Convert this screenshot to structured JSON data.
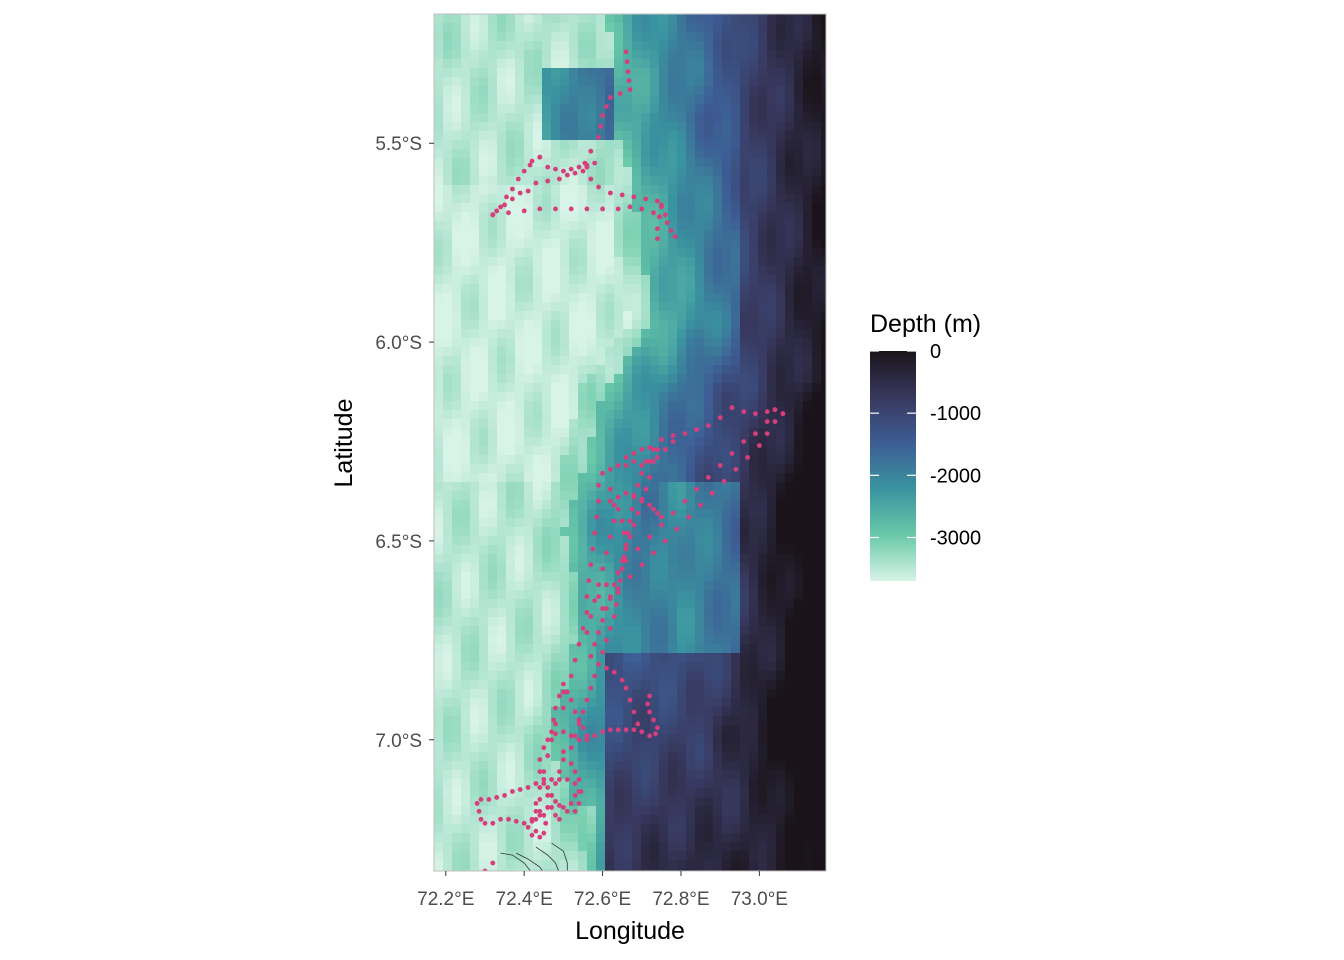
{
  "chart_data": {
    "type": "map",
    "xlabel": "Longitude",
    "ylabel": "Latitude",
    "xlim": [
      72.17,
      73.17
    ],
    "ylim": [
      -7.33,
      -5.175
    ],
    "x_ticks": [
      {
        "value": 72.2,
        "label": "72.2°E"
      },
      {
        "value": 72.4,
        "label": "72.4°E"
      },
      {
        "value": 72.6,
        "label": "72.6°E"
      },
      {
        "value": 72.8,
        "label": "72.8°E"
      },
      {
        "value": 73.0,
        "label": "73.0°E"
      }
    ],
    "y_ticks": [
      {
        "value": -5.5,
        "label": "5.5°S"
      },
      {
        "value": -6.0,
        "label": "6.0°S"
      },
      {
        "value": -6.5,
        "label": "6.5°S"
      },
      {
        "value": -7.0,
        "label": "7.0°S"
      }
    ],
    "legend": {
      "title": "Depth (m)",
      "placement": "right",
      "min": -3700,
      "max": 0,
      "breaks": [
        {
          "value": 0,
          "label": "0"
        },
        {
          "value": -1000,
          "label": "-1000"
        },
        {
          "value": -2000,
          "label": "-2000"
        },
        {
          "value": -3000,
          "label": "-3000"
        }
      ],
      "colors": [
        "#d8f3e7",
        "#69c9a8",
        "#3a94a0",
        "#3d5d94",
        "#38385e",
        "#1a141a"
      ]
    },
    "point_color": "#d63f7c",
    "track_segments": [
      [
        [
          72.66,
          -5.27
        ],
        [
          72.665,
          -5.32
        ],
        [
          72.67,
          -5.365
        ],
        [
          72.62,
          -5.385
        ],
        [
          72.6,
          -5.43
        ],
        [
          72.59,
          -5.485
        ],
        [
          72.57,
          -5.52
        ],
        [
          72.555,
          -5.55
        ],
        [
          72.56,
          -5.56
        ],
        [
          72.55,
          -5.57
        ],
        [
          72.53,
          -5.575
        ],
        [
          72.51,
          -5.58
        ],
        [
          72.49,
          -5.59
        ],
        [
          72.46,
          -5.595
        ],
        [
          72.43,
          -5.6
        ],
        [
          72.41,
          -5.62
        ],
        [
          72.39,
          -5.625
        ],
        [
          72.37,
          -5.64
        ],
        [
          72.35,
          -5.655
        ],
        [
          72.33,
          -5.67
        ],
        [
          72.32,
          -5.68
        ]
      ],
      [
        [
          72.32,
          -5.68
        ],
        [
          72.34,
          -5.66
        ],
        [
          72.355,
          -5.635
        ],
        [
          72.37,
          -5.615
        ],
        [
          72.385,
          -5.59
        ],
        [
          72.4,
          -5.57
        ],
        [
          72.415,
          -5.555
        ],
        [
          72.42,
          -5.545
        ],
        [
          72.44,
          -5.535
        ]
      ],
      [
        [
          72.44,
          -5.535
        ],
        [
          72.46,
          -5.56
        ],
        [
          72.48,
          -5.565
        ],
        [
          72.5,
          -5.57
        ],
        [
          72.52,
          -5.565
        ],
        [
          72.54,
          -5.56
        ],
        [
          72.56,
          -5.555
        ],
        [
          72.58,
          -5.55
        ]
      ],
      [
        [
          72.56,
          -5.56
        ],
        [
          72.57,
          -5.59
        ],
        [
          72.59,
          -5.61
        ],
        [
          72.62,
          -5.625
        ],
        [
          72.65,
          -5.63
        ],
        [
          72.68,
          -5.635
        ],
        [
          72.71,
          -5.64
        ],
        [
          72.74,
          -5.645
        ],
        [
          72.75,
          -5.66
        ],
        [
          72.76,
          -5.68
        ],
        [
          72.765,
          -5.7
        ],
        [
          72.775,
          -5.72
        ],
        [
          72.785,
          -5.735
        ]
      ],
      [
        [
          72.75,
          -5.655
        ],
        [
          72.745,
          -5.685
        ],
        [
          72.74,
          -5.715
        ],
        [
          72.74,
          -5.74
        ]
      ],
      [
        [
          72.32,
          -5.68
        ],
        [
          72.36,
          -5.675
        ],
        [
          72.4,
          -5.67
        ],
        [
          72.44,
          -5.665
        ],
        [
          72.48,
          -5.665
        ],
        [
          72.52,
          -5.665
        ],
        [
          72.56,
          -5.665
        ],
        [
          72.6,
          -5.665
        ],
        [
          72.64,
          -5.665
        ],
        [
          72.67,
          -5.66
        ],
        [
          72.7,
          -5.665
        ],
        [
          72.73,
          -5.675
        ]
      ],
      [
        [
          72.32,
          -7.31
        ],
        [
          72.28,
          -7.35
        ]
      ],
      [
        [
          72.93,
          -6.165
        ],
        [
          72.96,
          -6.175
        ],
        [
          72.99,
          -6.18
        ],
        [
          73.02,
          -6.175
        ],
        [
          73.04,
          -6.17
        ],
        [
          73.06,
          -6.18
        ]
      ],
      [
        [
          73.06,
          -6.18
        ],
        [
          73.04,
          -6.2
        ],
        [
          73.02,
          -6.23
        ],
        [
          73.0,
          -6.26
        ],
        [
          72.97,
          -6.29
        ],
        [
          72.94,
          -6.32
        ],
        [
          72.91,
          -6.35
        ],
        [
          72.88,
          -6.38
        ],
        [
          72.85,
          -6.41
        ],
        [
          72.82,
          -6.44
        ],
        [
          72.79,
          -6.47
        ],
        [
          72.76,
          -6.5
        ],
        [
          72.73,
          -6.53
        ],
        [
          72.7,
          -6.56
        ],
        [
          72.67,
          -6.59
        ],
        [
          72.64,
          -6.62
        ],
        [
          72.62,
          -6.645
        ],
        [
          72.6,
          -6.67
        ]
      ],
      [
        [
          73.04,
          -6.17
        ],
        [
          73.02,
          -6.2
        ],
        [
          72.99,
          -6.23
        ],
        [
          72.96,
          -6.25
        ],
        [
          72.93,
          -6.28
        ],
        [
          72.9,
          -6.31
        ],
        [
          72.87,
          -6.34
        ],
        [
          72.84,
          -6.37
        ],
        [
          72.81,
          -6.4
        ],
        [
          72.78,
          -6.43
        ],
        [
          72.75,
          -6.46
        ],
        [
          72.72,
          -6.49
        ],
        [
          72.69,
          -6.52
        ],
        [
          72.66,
          -6.55
        ],
        [
          72.64,
          -6.58
        ],
        [
          72.61,
          -6.61
        ],
        [
          72.59,
          -6.64
        ]
      ],
      [
        [
          72.93,
          -6.165
        ],
        [
          72.9,
          -6.19
        ],
        [
          72.87,
          -6.21
        ],
        [
          72.84,
          -6.22
        ],
        [
          72.81,
          -6.23
        ],
        [
          72.78,
          -6.235
        ],
        [
          72.75,
          -6.245
        ]
      ],
      [
        [
          72.78,
          -6.25
        ],
        [
          72.76,
          -6.27
        ],
        [
          72.74,
          -6.29
        ],
        [
          72.72,
          -6.3
        ],
        [
          72.7,
          -6.31
        ],
        [
          72.68,
          -6.3
        ],
        [
          72.66,
          -6.31
        ],
        [
          72.64,
          -6.31
        ],
        [
          72.62,
          -6.32
        ],
        [
          72.6,
          -6.33
        ],
        [
          72.59,
          -6.36
        ],
        [
          72.59,
          -6.4
        ],
        [
          72.585,
          -6.44
        ],
        [
          72.58,
          -6.48
        ],
        [
          72.575,
          -6.52
        ],
        [
          72.57,
          -6.56
        ],
        [
          72.565,
          -6.6
        ],
        [
          72.56,
          -6.64
        ],
        [
          72.56,
          -6.68
        ],
        [
          72.55,
          -6.72
        ],
        [
          72.54,
          -6.76
        ],
        [
          72.53,
          -6.8
        ],
        [
          72.52,
          -6.84
        ],
        [
          72.51,
          -6.88
        ],
        [
          72.5,
          -6.92
        ],
        [
          72.48,
          -6.96
        ],
        [
          72.47,
          -7.0
        ],
        [
          72.46,
          -7.04
        ],
        [
          72.45,
          -7.08
        ],
        [
          72.44,
          -7.12
        ],
        [
          72.43,
          -7.16
        ],
        [
          72.43,
          -7.2
        ],
        [
          72.43,
          -7.23
        ]
      ],
      [
        [
          72.75,
          -6.245
        ],
        [
          72.73,
          -6.27
        ],
        [
          72.71,
          -6.3
        ],
        [
          72.7,
          -6.33
        ],
        [
          72.69,
          -6.36
        ],
        [
          72.68,
          -6.39
        ],
        [
          72.675,
          -6.42
        ],
        [
          72.67,
          -6.45
        ],
        [
          72.665,
          -6.48
        ],
        [
          72.66,
          -6.51
        ],
        [
          72.655,
          -6.54
        ],
        [
          72.65,
          -6.57
        ],
        [
          72.645,
          -6.6
        ],
        [
          72.64,
          -6.63
        ],
        [
          72.635,
          -6.66
        ],
        [
          72.63,
          -6.69
        ],
        [
          72.62,
          -6.72
        ],
        [
          72.61,
          -6.75
        ],
        [
          72.6,
          -6.78
        ],
        [
          72.59,
          -6.81
        ],
        [
          72.58,
          -6.84
        ],
        [
          72.57,
          -6.87
        ],
        [
          72.56,
          -6.9
        ],
        [
          72.55,
          -6.93
        ],
        [
          72.54,
          -6.96
        ],
        [
          72.53,
          -6.99
        ],
        [
          72.52,
          -7.02
        ],
        [
          72.5,
          -7.05
        ],
        [
          72.49,
          -7.08
        ],
        [
          72.48,
          -7.11
        ],
        [
          72.47,
          -7.14
        ],
        [
          72.46,
          -7.17
        ]
      ],
      [
        [
          72.73,
          -6.3
        ],
        [
          72.72,
          -6.34
        ],
        [
          72.71,
          -6.37
        ],
        [
          72.7,
          -6.4
        ],
        [
          72.69,
          -6.43
        ],
        [
          72.68,
          -6.46
        ],
        [
          72.67,
          -6.49
        ],
        [
          72.66,
          -6.52
        ],
        [
          72.65,
          -6.55
        ],
        [
          72.64,
          -6.58
        ],
        [
          72.63,
          -6.61
        ],
        [
          72.62,
          -6.64
        ],
        [
          72.61,
          -6.67
        ],
        [
          72.6,
          -6.7
        ],
        [
          72.59,
          -6.73
        ],
        [
          72.58,
          -6.76
        ],
        [
          72.57,
          -6.79
        ]
      ],
      [
        [
          72.6,
          -6.33
        ],
        [
          72.62,
          -6.37
        ],
        [
          72.63,
          -6.41
        ],
        [
          72.63,
          -6.45
        ],
        [
          72.62,
          -6.49
        ],
        [
          72.61,
          -6.53
        ],
        [
          72.6,
          -6.57
        ],
        [
          72.59,
          -6.61
        ],
        [
          72.58,
          -6.65
        ],
        [
          72.57,
          -6.69
        ],
        [
          72.56,
          -6.73
        ]
      ],
      [
        [
          72.62,
          -6.4
        ],
        [
          72.64,
          -6.39
        ],
        [
          72.66,
          -6.38
        ],
        [
          72.68,
          -6.385
        ],
        [
          72.7,
          -6.395
        ],
        [
          72.72,
          -6.41
        ],
        [
          72.73,
          -6.42
        ],
        [
          72.74,
          -6.43
        ],
        [
          72.75,
          -6.44
        ]
      ],
      [
        [
          72.66,
          -6.29
        ],
        [
          72.68,
          -6.28
        ],
        [
          72.7,
          -6.27
        ],
        [
          72.72,
          -6.265
        ],
        [
          72.74,
          -6.27
        ],
        [
          72.76,
          -6.27
        ]
      ],
      [
        [
          72.64,
          -6.42
        ],
        [
          72.65,
          -6.45
        ],
        [
          72.655,
          -6.48
        ]
      ],
      [
        [
          72.61,
          -6.82
        ],
        [
          72.63,
          -6.83
        ],
        [
          72.65,
          -6.85
        ],
        [
          72.66,
          -6.87
        ],
        [
          72.67,
          -6.9
        ],
        [
          72.68,
          -6.93
        ],
        [
          72.69,
          -6.96
        ],
        [
          72.7,
          -6.98
        ],
        [
          72.72,
          -6.99
        ],
        [
          72.735,
          -6.985
        ],
        [
          72.74,
          -6.97
        ],
        [
          72.73,
          -6.95
        ],
        [
          72.72,
          -6.93
        ],
        [
          72.715,
          -6.91
        ],
        [
          72.72,
          -6.89
        ]
      ],
      [
        [
          72.7,
          -6.98
        ],
        [
          72.68,
          -6.975
        ],
        [
          72.66,
          -6.975
        ],
        [
          72.64,
          -6.975
        ],
        [
          72.62,
          -6.975
        ],
        [
          72.6,
          -6.98
        ],
        [
          72.58,
          -6.99
        ],
        [
          72.56,
          -7.0
        ],
        [
          72.54,
          -7.0
        ],
        [
          72.52,
          -6.99
        ],
        [
          72.5,
          -6.98
        ],
        [
          72.48,
          -6.985
        ],
        [
          72.46,
          -7.0
        ],
        [
          72.45,
          -7.02
        ],
        [
          72.44,
          -7.05
        ],
        [
          72.44,
          -7.08
        ],
        [
          72.45,
          -7.11
        ],
        [
          72.46,
          -7.14
        ],
        [
          72.47,
          -7.17
        ],
        [
          72.48,
          -7.19
        ],
        [
          72.49,
          -7.2
        ]
      ],
      [
        [
          72.5,
          -6.88
        ],
        [
          72.52,
          -6.9
        ],
        [
          72.53,
          -6.93
        ],
        [
          72.54,
          -6.95
        ],
        [
          72.55,
          -6.97
        ],
        [
          72.56,
          -6.99
        ]
      ],
      [
        [
          72.5,
          -6.86
        ],
        [
          72.49,
          -6.89
        ],
        [
          72.48,
          -6.92
        ],
        [
          72.475,
          -6.95
        ],
        [
          72.47,
          -6.98
        ]
      ],
      [
        [
          72.45,
          -7.1
        ],
        [
          72.43,
          -7.11
        ],
        [
          72.41,
          -7.12
        ],
        [
          72.39,
          -7.125
        ],
        [
          72.37,
          -7.13
        ],
        [
          72.35,
          -7.14
        ],
        [
          72.33,
          -7.145
        ],
        [
          72.31,
          -7.15
        ],
        [
          72.29,
          -7.15
        ],
        [
          72.28,
          -7.16
        ],
        [
          72.285,
          -7.18
        ],
        [
          72.29,
          -7.2
        ],
        [
          72.3,
          -7.21
        ],
        [
          72.32,
          -7.21
        ]
      ],
      [
        [
          72.46,
          -7.12
        ],
        [
          72.47,
          -7.14
        ],
        [
          72.48,
          -7.155
        ],
        [
          72.49,
          -7.165
        ],
        [
          72.5,
          -7.17
        ],
        [
          72.51,
          -7.18
        ],
        [
          72.52,
          -7.16
        ],
        [
          72.53,
          -7.14
        ],
        [
          72.54,
          -7.13
        ],
        [
          72.53,
          -7.11
        ],
        [
          72.51,
          -7.1
        ],
        [
          72.49,
          -7.1
        ],
        [
          72.47,
          -7.1
        ]
      ],
      [
        [
          72.44,
          -7.15
        ],
        [
          72.43,
          -7.18
        ],
        [
          72.42,
          -7.2
        ],
        [
          72.41,
          -7.22
        ],
        [
          72.42,
          -7.24
        ],
        [
          72.44,
          -7.245
        ],
        [
          72.45,
          -7.235
        ],
        [
          72.455,
          -7.21
        ],
        [
          72.45,
          -7.19
        ],
        [
          72.44,
          -7.18
        ]
      ],
      [
        [
          72.46,
          -7.17
        ],
        [
          72.44,
          -7.19
        ],
        [
          72.42,
          -7.205
        ],
        [
          72.4,
          -7.21
        ],
        [
          72.38,
          -7.205
        ],
        [
          72.36,
          -7.2
        ],
        [
          72.34,
          -7.2
        ]
      ],
      [
        [
          72.5,
          -7.03
        ],
        [
          72.52,
          -7.06
        ],
        [
          72.53,
          -7.08
        ],
        [
          72.54,
          -7.1
        ],
        [
          72.545,
          -7.13
        ],
        [
          72.54,
          -7.16
        ],
        [
          72.53,
          -7.18
        ]
      ]
    ]
  }
}
